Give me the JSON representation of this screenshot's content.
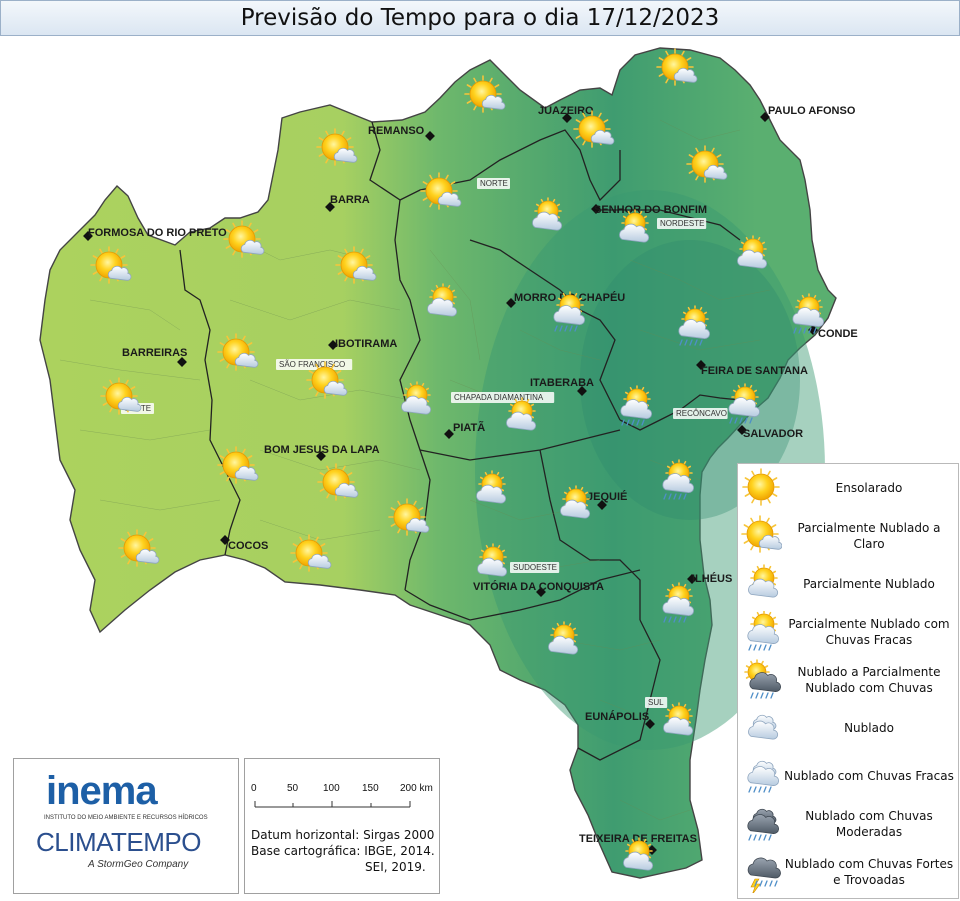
{
  "title": "Previsão do Tempo para o dia 17/12/2023",
  "cities": [
    "FORMOSA DO RIO PRETO",
    "BARREIRAS",
    "BARRA",
    "REMANSO",
    "JUAZEIRO",
    "PAULO AFONSO",
    "SENHOR DO BONFIM",
    "MORRO DO CHAPÉU",
    "IBOTIRAMA",
    "ITABERABA",
    "FEIRA DE SANTANA",
    "CONDE",
    "SALVADOR",
    "PIATÃ",
    "BOM JESUS DA LAPA",
    "JEQUIÉ",
    "COCOS",
    "VITÓRIA DA CONQUISTA",
    "ILHÉUS",
    "EUNÁPOLIS",
    "TEIXEIRA DE FREITAS"
  ],
  "regions": [
    "NORTE",
    "NORDESTE",
    "SÃO FRANCISCO",
    "OESTE",
    "CHAPADA DIAMANTINA",
    "RECÔNCAVO",
    "SUDOESTE",
    "SUL"
  ],
  "legend": [
    {
      "label": "Ensolarado",
      "icon": "sun-icon"
    },
    {
      "label": "Parcialmente Nublado a Claro",
      "icon": "sun-small-cloud-icon"
    },
    {
      "label": "Parcialmente Nublado",
      "icon": "sun-cloud-icon"
    },
    {
      "label": "Parcialmente Nublado com Chuvas Fracas",
      "icon": "sun-cloud-light-rain-icon"
    },
    {
      "label": "Nublado a Parcialmente Nublado com Chuvas",
      "icon": "sun-dark-cloud-rain-icon"
    },
    {
      "label": "Nublado",
      "icon": "cloud-icon"
    },
    {
      "label": "Nublado com Chuvas Fracas",
      "icon": "cloud-light-rain-icon"
    },
    {
      "label": "Nublado com Chuvas Moderadas",
      "icon": "dark-cloud-rain-icon"
    },
    {
      "label": "Nublado com Chuvas Fortes e Trovoadas",
      "icon": "storm-cloud-icon"
    }
  ],
  "logos": {
    "inema": "inema",
    "inema_sub": "INSTITUTO DO MEIO AMBIENTE E RECURSOS HÍDRICOS",
    "climatempo": "CLIMATEMPO",
    "stormgeo": "A StormGeo Company"
  },
  "scale": {
    "ticks": [
      "0",
      "50",
      "100",
      "150",
      "200 km"
    ],
    "datum": "Datum horizontal: Sirgas 2000",
    "base": "Base cartográfica: IBGE, 2014.",
    "sei": "SEI, 2019."
  },
  "colors": {
    "dry_region": "#a9d15f",
    "wet_region": "#3f9c70",
    "legend_border": "#b9b9b9"
  }
}
